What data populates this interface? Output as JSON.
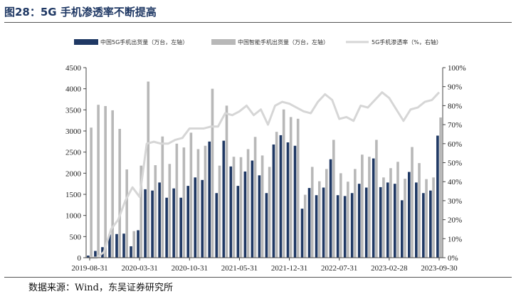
{
  "header": {
    "title": "图28：5G 手机渗透率不断提高"
  },
  "footer": {
    "source": "数据来源：Wind，东吴证券研究所"
  },
  "colors": {
    "bar_5g": "#1f3864",
    "bar_smart": "#b8b8b8",
    "line_rate": "#d6d6d6"
  },
  "chart_data": {
    "type": "bar",
    "title": "图28：5G 手机渗透率不断提高",
    "legend_position": "top",
    "grid": false,
    "x": [
      "2019-08",
      "2019-09",
      "2019-10",
      "2019-11",
      "2019-12",
      "2020-01",
      "2020-02",
      "2020-03",
      "2020-04",
      "2020-05",
      "2020-06",
      "2020-07",
      "2020-08",
      "2020-09",
      "2020-10",
      "2020-11",
      "2020-12",
      "2021-01",
      "2021-02",
      "2021-03",
      "2021-04",
      "2021-05",
      "2021-06",
      "2021-07",
      "2021-08",
      "2021-09",
      "2021-10",
      "2021-11",
      "2021-12",
      "2022-01",
      "2022-02",
      "2022-03",
      "2022-04",
      "2022-05",
      "2022-06",
      "2022-07",
      "2022-08",
      "2022-09",
      "2022-10",
      "2022-11",
      "2022-12",
      "2023-01",
      "2023-02",
      "2023-03",
      "2023-04",
      "2023-05",
      "2023-06",
      "2023-07",
      "2023-08",
      "2023-09"
    ],
    "x_tick_labels": [
      "2019-08-31",
      "2020-03-31",
      "2020-10-31",
      "2021-05-31",
      "2021-12-31",
      "2022-07-31",
      "2023-02-28",
      "2023-09-30"
    ],
    "x_tick_indices": [
      0,
      7,
      14,
      21,
      28,
      35,
      42,
      49
    ],
    "y_left": {
      "min": 0,
      "max": 4500,
      "step": 500,
      "ticks": [
        "0",
        "500",
        "1000",
        "1500",
        "2000",
        "2500",
        "3000",
        "3500",
        "4000",
        "4500"
      ]
    },
    "y_right": {
      "min": 0,
      "max": 100,
      "step": 10,
      "ticks": [
        "0%",
        "10%",
        "20%",
        "30%",
        "40%",
        "50%",
        "60%",
        "70%",
        "80%",
        "90%",
        "100%"
      ]
    },
    "series": [
      {
        "name": "中国5G手机出货量（万台，左轴）",
        "type": "bar",
        "axis": "left",
        "values": [
          50,
          160,
          250,
          550,
          560,
          570,
          270,
          650,
          1620,
          1590,
          1780,
          1420,
          1640,
          1420,
          1700,
          1900,
          1840,
          2750,
          1530,
          2770,
          2160,
          1700,
          2040,
          2300,
          1950,
          1530,
          2680,
          2900,
          2730,
          2650,
          1160,
          1650,
          1480,
          1660,
          2330,
          1480,
          1460,
          1530,
          1750,
          1660,
          2350,
          1670,
          1780,
          1750,
          1360,
          2030,
          1780,
          1530,
          1590,
          2890
        ]
      },
      {
        "name": "中国智能手机出货量（万台，左轴）",
        "type": "bar",
        "axis": "left",
        "values": [
          3080,
          3620,
          3590,
          3490,
          3050,
          2090,
          630,
          2180,
          4170,
          2190,
          2870,
          2220,
          2700,
          2610,
          2960,
          2570,
          2650,
          4000,
          2180,
          3600,
          2390,
          2380,
          2570,
          2860,
          2420,
          2150,
          2980,
          3510,
          3330,
          3290,
          1490,
          2150,
          1810,
          2100,
          2790,
          2000,
          1800,
          2100,
          2440,
          2390,
          2790,
          1900,
          2120,
          2270,
          1870,
          2620,
          2240,
          1860,
          1900,
          3320
        ]
      },
      {
        "name": "5G手机渗透率（%，右轴）",
        "type": "line",
        "axis": "right",
        "values": [
          0,
          0,
          3,
          15,
          20,
          30,
          37,
          32,
          60,
          61,
          60,
          60,
          62,
          63,
          68,
          68,
          68,
          69,
          69,
          76,
          75,
          77,
          80,
          75,
          78,
          70,
          80,
          82,
          81,
          79,
          77,
          76,
          82,
          86,
          83,
          73,
          74,
          72,
          80,
          79,
          83,
          87,
          84,
          78,
          72,
          78,
          79,
          82,
          83,
          87
        ]
      }
    ]
  }
}
